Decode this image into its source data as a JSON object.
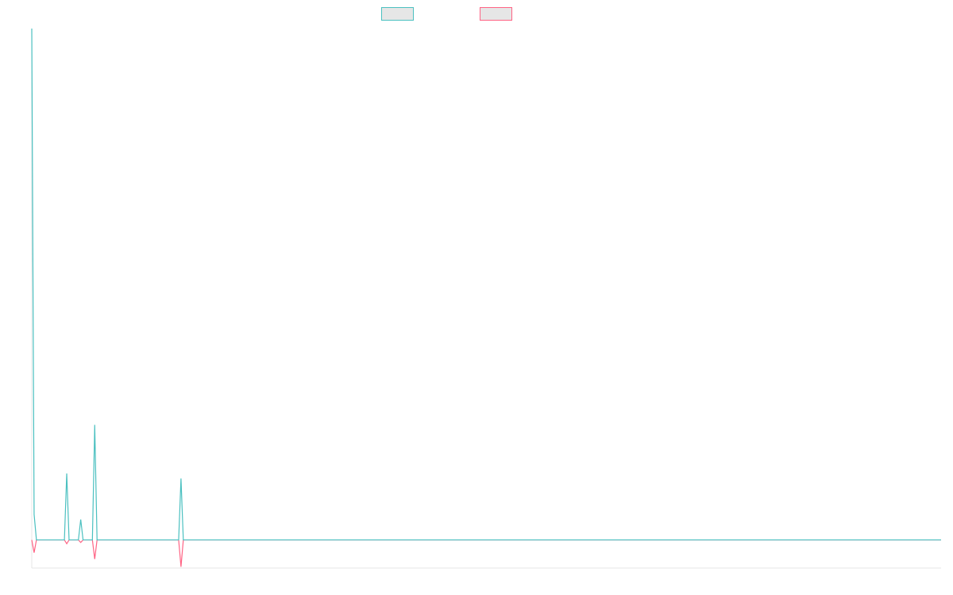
{
  "chart_data": {
    "type": "line",
    "title": "",
    "xlabel": "",
    "ylabel": "",
    "x": [
      0,
      1,
      2,
      3,
      4,
      5,
      6,
      7,
      8,
      9,
      10,
      11,
      12,
      13,
      14,
      15,
      16,
      17,
      18,
      19,
      20,
      21,
      22,
      23,
      24,
      25,
      26,
      27,
      28,
      29,
      30,
      31,
      32,
      33,
      34,
      35,
      36,
      37,
      38,
      39,
      40,
      41,
      42,
      43,
      44,
      45,
      46,
      47,
      48,
      49,
      50,
      51,
      52,
      53,
      54,
      55,
      56,
      57,
      58,
      59,
      60,
      61,
      62,
      63,
      64,
      65,
      66,
      67,
      68,
      69,
      70,
      71,
      72,
      73,
      74,
      75,
      76,
      77,
      78,
      79,
      80,
      81,
      82,
      83,
      84,
      85,
      86,
      87,
      88,
      89,
      90,
      91,
      92,
      93,
      94,
      95,
      96,
      97,
      98,
      99,
      100,
      101,
      102,
      103,
      104,
      105,
      106,
      107,
      108,
      109,
      110,
      111,
      112,
      113,
      114,
      115,
      116,
      117,
      118,
      119,
      120,
      121,
      122,
      123,
      124,
      125,
      126,
      127,
      128,
      129,
      130,
      131,
      132,
      133,
      134,
      135,
      136,
      137,
      138,
      139,
      140,
      141,
      142,
      143,
      144,
      145,
      146,
      147,
      148,
      149,
      150,
      151,
      152,
      153,
      154,
      155,
      156,
      157,
      158,
      159,
      160,
      161,
      162,
      163,
      164,
      165,
      166,
      167,
      168,
      169,
      170,
      171,
      172,
      173,
      174,
      175,
      176,
      177,
      178,
      179,
      180,
      181,
      182,
      183,
      184,
      185,
      186,
      187,
      188,
      189,
      190,
      191,
      192,
      193,
      194,
      195,
      196,
      197,
      198,
      199,
      200,
      201,
      202,
      203,
      204,
      205,
      206,
      207,
      208,
      209,
      210,
      211,
      212,
      213,
      214,
      215,
      216,
      217,
      218,
      219,
      220,
      221,
      222,
      223,
      224,
      225,
      226,
      227,
      228,
      229,
      230,
      231,
      232,
      233,
      234,
      235,
      236,
      237,
      238,
      239,
      240,
      241,
      242,
      243,
      244,
      245,
      246,
      247,
      248,
      249,
      250,
      251,
      252,
      253,
      254,
      255,
      256,
      257,
      258,
      259,
      260,
      261,
      262,
      263,
      264,
      265,
      266,
      267,
      268,
      269,
      270,
      271,
      272,
      273,
      274,
      275,
      276,
      277,
      278,
      279,
      280,
      281,
      282,
      283,
      284,
      285,
      286,
      287,
      288,
      289,
      290,
      291,
      292,
      293,
      294,
      295,
      296,
      297,
      298,
      299,
      300,
      301,
      302,
      303,
      304,
      305,
      306,
      307,
      308,
      309,
      310,
      311,
      312,
      313,
      314,
      315,
      316,
      317,
      318,
      319,
      320,
      321,
      322,
      323,
      324,
      325,
      326,
      327,
      328,
      329,
      330,
      331,
      332,
      333,
      334,
      335,
      336,
      337,
      338,
      339,
      340,
      341,
      342,
      343,
      344,
      345,
      346,
      347,
      348,
      349,
      350,
      351,
      352,
      353,
      354,
      355,
      356,
      357,
      358,
      359,
      360,
      361,
      362,
      363,
      364,
      365,
      366,
      367,
      368,
      369,
      370,
      371,
      372,
      373,
      374,
      375,
      376,
      377,
      378,
      379,
      380,
      381,
      382,
      383,
      384,
      385,
      386,
      387,
      388,
      389,
      390
    ],
    "xlim": [
      0,
      390
    ],
    "ylim": [
      -1.1,
      20
    ],
    "grid": false,
    "legend_position": "top-center",
    "series": [
      {
        "name": "",
        "color": "#4bc0c0",
        "fill": "#e6e6e6",
        "points": [
          [
            0,
            20
          ],
          [
            1,
            1
          ],
          [
            2,
            0
          ],
          [
            14,
            0
          ],
          [
            15,
            2.6
          ],
          [
            16,
            0
          ],
          [
            20,
            0
          ],
          [
            21,
            0.8
          ],
          [
            22,
            0
          ],
          [
            26,
            0
          ],
          [
            27,
            4.5
          ],
          [
            28,
            0
          ],
          [
            63,
            0
          ],
          [
            64,
            2.4
          ],
          [
            65,
            0
          ],
          [
            390,
            0
          ]
        ]
      },
      {
        "name": "",
        "color": "#ff6384",
        "fill": "#e6e6e6",
        "points": [
          [
            0,
            0
          ],
          [
            1,
            -0.5
          ],
          [
            2,
            0
          ],
          [
            14,
            0
          ],
          [
            15,
            -0.15
          ],
          [
            16,
            0
          ],
          [
            20,
            0
          ],
          [
            21,
            -0.1
          ],
          [
            22,
            0
          ],
          [
            26,
            0
          ],
          [
            27,
            -0.75
          ],
          [
            28,
            0
          ],
          [
            63,
            0
          ],
          [
            64,
            -1.05
          ],
          [
            65,
            0
          ],
          [
            390,
            0
          ]
        ]
      }
    ]
  }
}
